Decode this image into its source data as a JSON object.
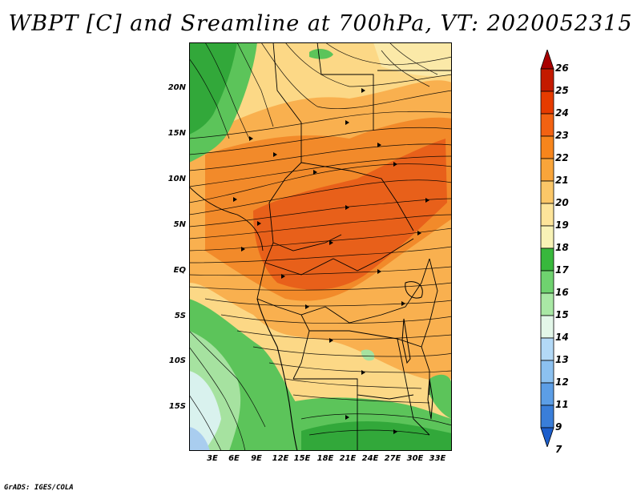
{
  "title": "WBPT [C] and Sreamline at 700hPa, VT: 2020052315",
  "credit": "GrADS: IGES/COLA",
  "y_axis_labels": [
    "20N",
    "15N",
    "10N",
    "5N",
    "EQ",
    "5S",
    "10S",
    "15S"
  ],
  "x_axis_labels": [
    "3E",
    "6E",
    "9E",
    "12E",
    "15E",
    "18E",
    "21E",
    "24E",
    "27E",
    "30E",
    "33E"
  ],
  "colorbar": {
    "labels": [
      "26",
      "25",
      "24",
      "23",
      "22",
      "21",
      "20",
      "19",
      "18",
      "17",
      "16",
      "15",
      "14",
      "13",
      "12",
      "11",
      "9",
      "7"
    ],
    "colors": [
      "#a80000",
      "#c41a00",
      "#e63b00",
      "#f26212",
      "#f7851c",
      "#f9a53a",
      "#fbc768",
      "#fde49a",
      "#f8f2b6",
      "#38b83c",
      "#6fd26f",
      "#a9e8a5",
      "#e3f7e9",
      "#b3d9f7",
      "#8cc1f0",
      "#5c9ee6",
      "#3a7ed9",
      "#1c5ecc"
    ]
  },
  "map_colors": {
    "dark_orange": "#e8601a",
    "orange": "#f28a2a",
    "light_orange": "#f9b04f",
    "yellow": "#fcd886",
    "pale_yellow": "#fbe9a8",
    "green": "#5cc45a",
    "dark_green": "#32a83a",
    "light_green": "#a6e2a0",
    "pale_cyan": "#d9f2ee",
    "light_blue": "#a9cdef"
  }
}
